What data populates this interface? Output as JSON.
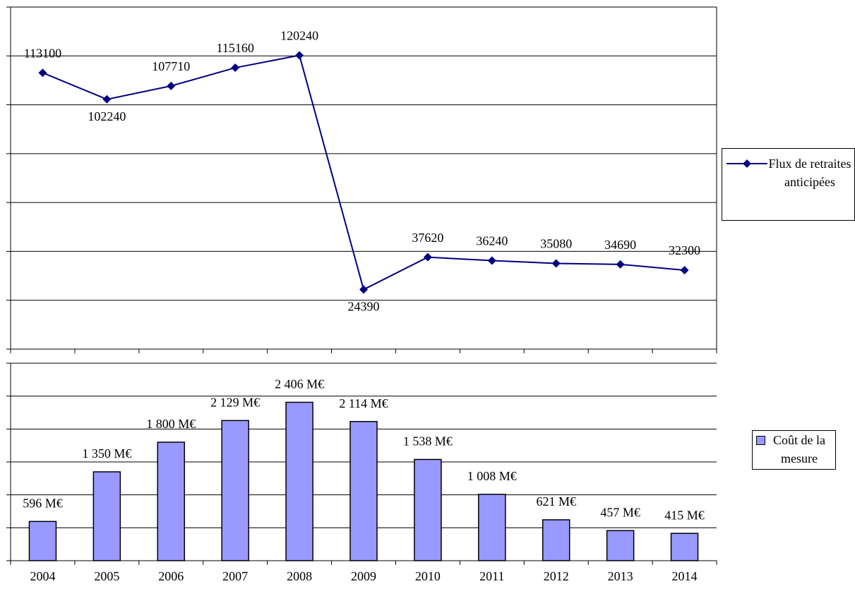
{
  "chart_data": [
    {
      "type": "line",
      "series": [
        {
          "name": "Flux de retraites anticipées",
          "color": "#000080",
          "values": [
            113100,
            102240,
            107710,
            115160,
            120240,
            24390,
            37620,
            36240,
            35080,
            34690,
            32300
          ]
        }
      ],
      "ylim": [
        0,
        140000
      ],
      "yticks": [
        0,
        20000,
        40000,
        60000,
        80000,
        100000,
        120000,
        140000
      ],
      "grid": true
    },
    {
      "type": "bar",
      "categories": [
        "2004",
        "2005",
        "2006",
        "2007",
        "2008",
        "2009",
        "2010",
        "2011",
        "2012",
        "2013",
        "2014"
      ],
      "series": [
        {
          "name": "Coût de la mesure",
          "color": "#9999ff",
          "values": [
            596,
            1350,
            1800,
            2129,
            2406,
            2114,
            1538,
            1008,
            621,
            457,
            415
          ],
          "value_labels": [
            "596 M€",
            "1 350 M€",
            "1 800 M€",
            "2 129 M€",
            "2 406 M€",
            "2 114 M€",
            "1 538 M€",
            "1 008 M€",
            "621 M€",
            "457 M€",
            "415 M€"
          ]
        }
      ],
      "ylim": [
        0,
        3000
      ],
      "yticks": [
        0,
        500,
        1000,
        1500,
        2000,
        2500,
        3000
      ],
      "grid": true
    }
  ]
}
